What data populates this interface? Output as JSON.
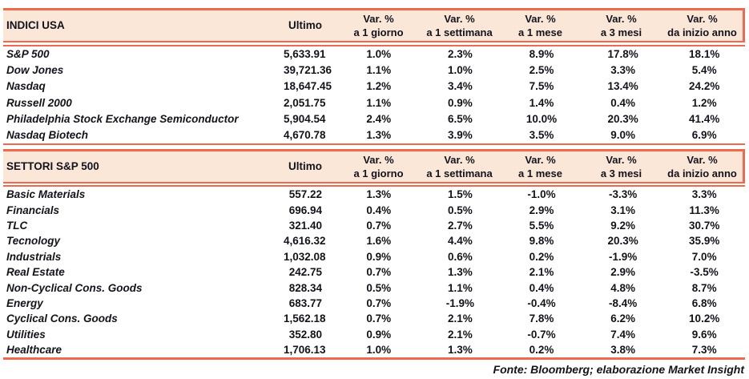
{
  "colors": {
    "accent": "#EE6A4F",
    "header_bg": "#FBE7D8",
    "text": "#13131B"
  },
  "footer": {
    "source_note": "Fonte: Bloomberg; elaborazione Market Insight"
  },
  "tables": [
    {
      "title": "INDICI USA",
      "ultimo_label": "Ultimo",
      "pct_cols": [
        {
          "top": "Var. %",
          "sub": "a 1 giorno"
        },
        {
          "top": "Var. %",
          "sub": "a 1 settimana"
        },
        {
          "top": "Var. %",
          "sub": "a 1 mese"
        },
        {
          "top": "Var. %",
          "sub": "a 3 mesi"
        },
        {
          "top": "Var. %",
          "sub": "da inizio anno"
        }
      ],
      "rows": [
        {
          "name": "S&P 500",
          "ultimo": "5,633.91",
          "vals": [
            "1.0%",
            "2.3%",
            "8.9%",
            "17.8%",
            "18.1%"
          ]
        },
        {
          "name": "Dow Jones",
          "ultimo": "39,721.36",
          "vals": [
            "1.1%",
            "1.0%",
            "2.5%",
            "3.3%",
            "5.4%"
          ]
        },
        {
          "name": "Nasdaq",
          "ultimo": "18,647.45",
          "vals": [
            "1.2%",
            "3.4%",
            "7.5%",
            "13.4%",
            "24.2%"
          ]
        },
        {
          "name": "Russell 2000",
          "ultimo": "2,051.75",
          "vals": [
            "1.1%",
            "0.9%",
            "1.4%",
            "0.4%",
            "1.2%"
          ]
        },
        {
          "name": "Philadelphia Stock Exchange Semiconductor",
          "ultimo": "5,904.54",
          "vals": [
            "2.4%",
            "6.5%",
            "10.0%",
            "20.3%",
            "41.4%"
          ]
        },
        {
          "name": "Nasdaq Biotech",
          "ultimo": "4,670.78",
          "vals": [
            "1.3%",
            "3.9%",
            "3.5%",
            "9.0%",
            "6.9%"
          ]
        }
      ]
    },
    {
      "title": "SETTORI S&P 500",
      "ultimo_label": "Ultimo",
      "pct_cols": [
        {
          "top": "Var. %",
          "sub": "a 1 giorno"
        },
        {
          "top": "Var. %",
          "sub": "a 1 settimana"
        },
        {
          "top": "Var. %",
          "sub": "a 1 mese"
        },
        {
          "top": "Var. %",
          "sub": "a 3 mesi"
        },
        {
          "top": "Var. %",
          "sub": "da inizio anno"
        }
      ],
      "rows": [
        {
          "name": "Basic Materials",
          "ultimo": "557.22",
          "vals": [
            "1.3%",
            "1.5%",
            "-1.0%",
            "-3.3%",
            "3.3%"
          ]
        },
        {
          "name": "Financials",
          "ultimo": "696.94",
          "vals": [
            "0.4%",
            "0.5%",
            "2.9%",
            "3.1%",
            "11.3%"
          ]
        },
        {
          "name": "TLC",
          "ultimo": "321.40",
          "vals": [
            "0.7%",
            "2.7%",
            "5.5%",
            "9.2%",
            "30.7%"
          ]
        },
        {
          "name": "Tecnology",
          "ultimo": "4,616.32",
          "vals": [
            "1.6%",
            "4.4%",
            "9.8%",
            "20.3%",
            "35.9%"
          ]
        },
        {
          "name": "Industrials",
          "ultimo": "1,032.08",
          "vals": [
            "0.9%",
            "0.6%",
            "0.2%",
            "-1.9%",
            "7.0%"
          ]
        },
        {
          "name": "Real Estate",
          "ultimo": "242.75",
          "vals": [
            "0.7%",
            "1.3%",
            "2.1%",
            "2.9%",
            "-3.5%"
          ]
        },
        {
          "name": "Non-Cyclical Cons. Goods",
          "ultimo": "828.34",
          "vals": [
            "0.5%",
            "1.1%",
            "0.4%",
            "4.8%",
            "8.7%"
          ]
        },
        {
          "name": "Energy",
          "ultimo": "683.77",
          "vals": [
            "0.7%",
            "-1.9%",
            "-0.4%",
            "-8.4%",
            "6.8%"
          ]
        },
        {
          "name": "Cyclical Cons. Goods",
          "ultimo": "1,562.18",
          "vals": [
            "0.7%",
            "2.1%",
            "7.8%",
            "6.2%",
            "10.2%"
          ]
        },
        {
          "name": "Utilities",
          "ultimo": "352.80",
          "vals": [
            "0.9%",
            "2.1%",
            "-0.7%",
            "7.4%",
            "9.6%"
          ]
        },
        {
          "name": "Healthcare",
          "ultimo": "1,706.13",
          "vals": [
            "1.0%",
            "1.3%",
            "0.2%",
            "3.8%",
            "7.3%"
          ]
        }
      ]
    }
  ]
}
